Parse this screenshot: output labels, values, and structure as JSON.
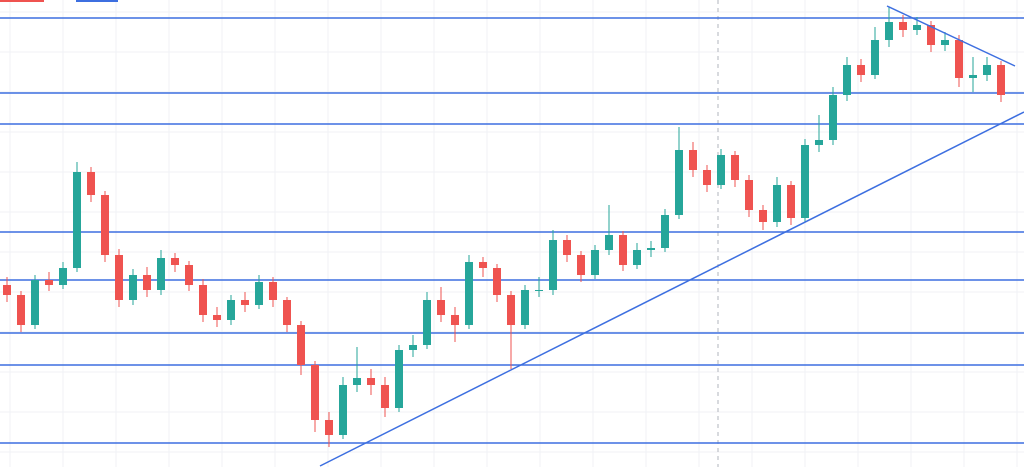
{
  "chart_data": {
    "type": "candlestick",
    "ylim": [
      0,
      467
    ],
    "up_color": "#26a69a",
    "down_color": "#ef5350",
    "grid": true,
    "open": [
      182,
      172,
      142,
      187,
      182,
      199,
      295,
      272,
      212,
      167,
      192,
      177,
      209,
      202,
      182,
      152,
      147,
      167,
      162,
      185,
      167,
      142,
      102,
      47,
      32,
      82,
      89,
      82,
      59,
      117,
      122,
      167,
      152,
      142,
      205,
      199,
      172,
      142,
      177,
      177,
      227,
      212,
      192,
      217,
      232,
      202,
      217,
      219,
      252,
      317,
      297,
      282,
      312,
      287,
      257,
      245,
      282,
      249,
      322,
      327,
      372,
      402,
      392,
      427,
      445,
      437,
      442,
      422,
      427,
      389,
      392,
      402
    ],
    "high": [
      190,
      176,
      192,
      195,
      205,
      305,
      300,
      276,
      218,
      198,
      200,
      217,
      214,
      206,
      188,
      160,
      172,
      175,
      192,
      190,
      170,
      146,
      106,
      55,
      90,
      120,
      98,
      90,
      122,
      132,
      175,
      180,
      160,
      212,
      210,
      203,
      176,
      182,
      190,
      237,
      232,
      216,
      222,
      262,
      236,
      224,
      226,
      258,
      340,
      325,
      302,
      318,
      316,
      292,
      262,
      290,
      286,
      328,
      352,
      380,
      410,
      408,
      440,
      460,
      452,
      450,
      446,
      435,
      432,
      410,
      410,
      406
    ],
    "low": [
      165,
      135,
      138,
      176,
      178,
      195,
      265,
      205,
      160,
      162,
      170,
      172,
      195,
      176,
      145,
      140,
      142,
      155,
      158,
      160,
      135,
      92,
      35,
      20,
      28,
      75,
      72,
      50,
      55,
      110,
      118,
      145,
      125,
      138,
      190,
      165,
      98,
      138,
      170,
      172,
      205,
      185,
      188,
      212,
      196,
      198,
      210,
      215,
      248,
      290,
      275,
      278,
      280,
      250,
      237,
      240,
      242,
      245,
      315,
      322,
      366,
      385,
      388,
      420,
      430,
      432,
      415,
      416,
      380,
      375,
      386,
      365
    ],
    "close": [
      172,
      142,
      187,
      182,
      199,
      295,
      272,
      212,
      167,
      192,
      177,
      209,
      202,
      182,
      152,
      147,
      167,
      162,
      185,
      167,
      142,
      102,
      47,
      32,
      82,
      89,
      82,
      59,
      117,
      122,
      167,
      152,
      142,
      205,
      199,
      172,
      142,
      177,
      177,
      227,
      212,
      192,
      217,
      232,
      202,
      217,
      219,
      252,
      317,
      297,
      282,
      312,
      287,
      257,
      245,
      282,
      249,
      322,
      327,
      372,
      402,
      392,
      427,
      445,
      437,
      442,
      422,
      427,
      389,
      392,
      402,
      372
    ],
    "levels": [
      449,
      374,
      343,
      235,
      187,
      134,
      102,
      24
    ],
    "level_color": "#3d6fe0"
  }
}
